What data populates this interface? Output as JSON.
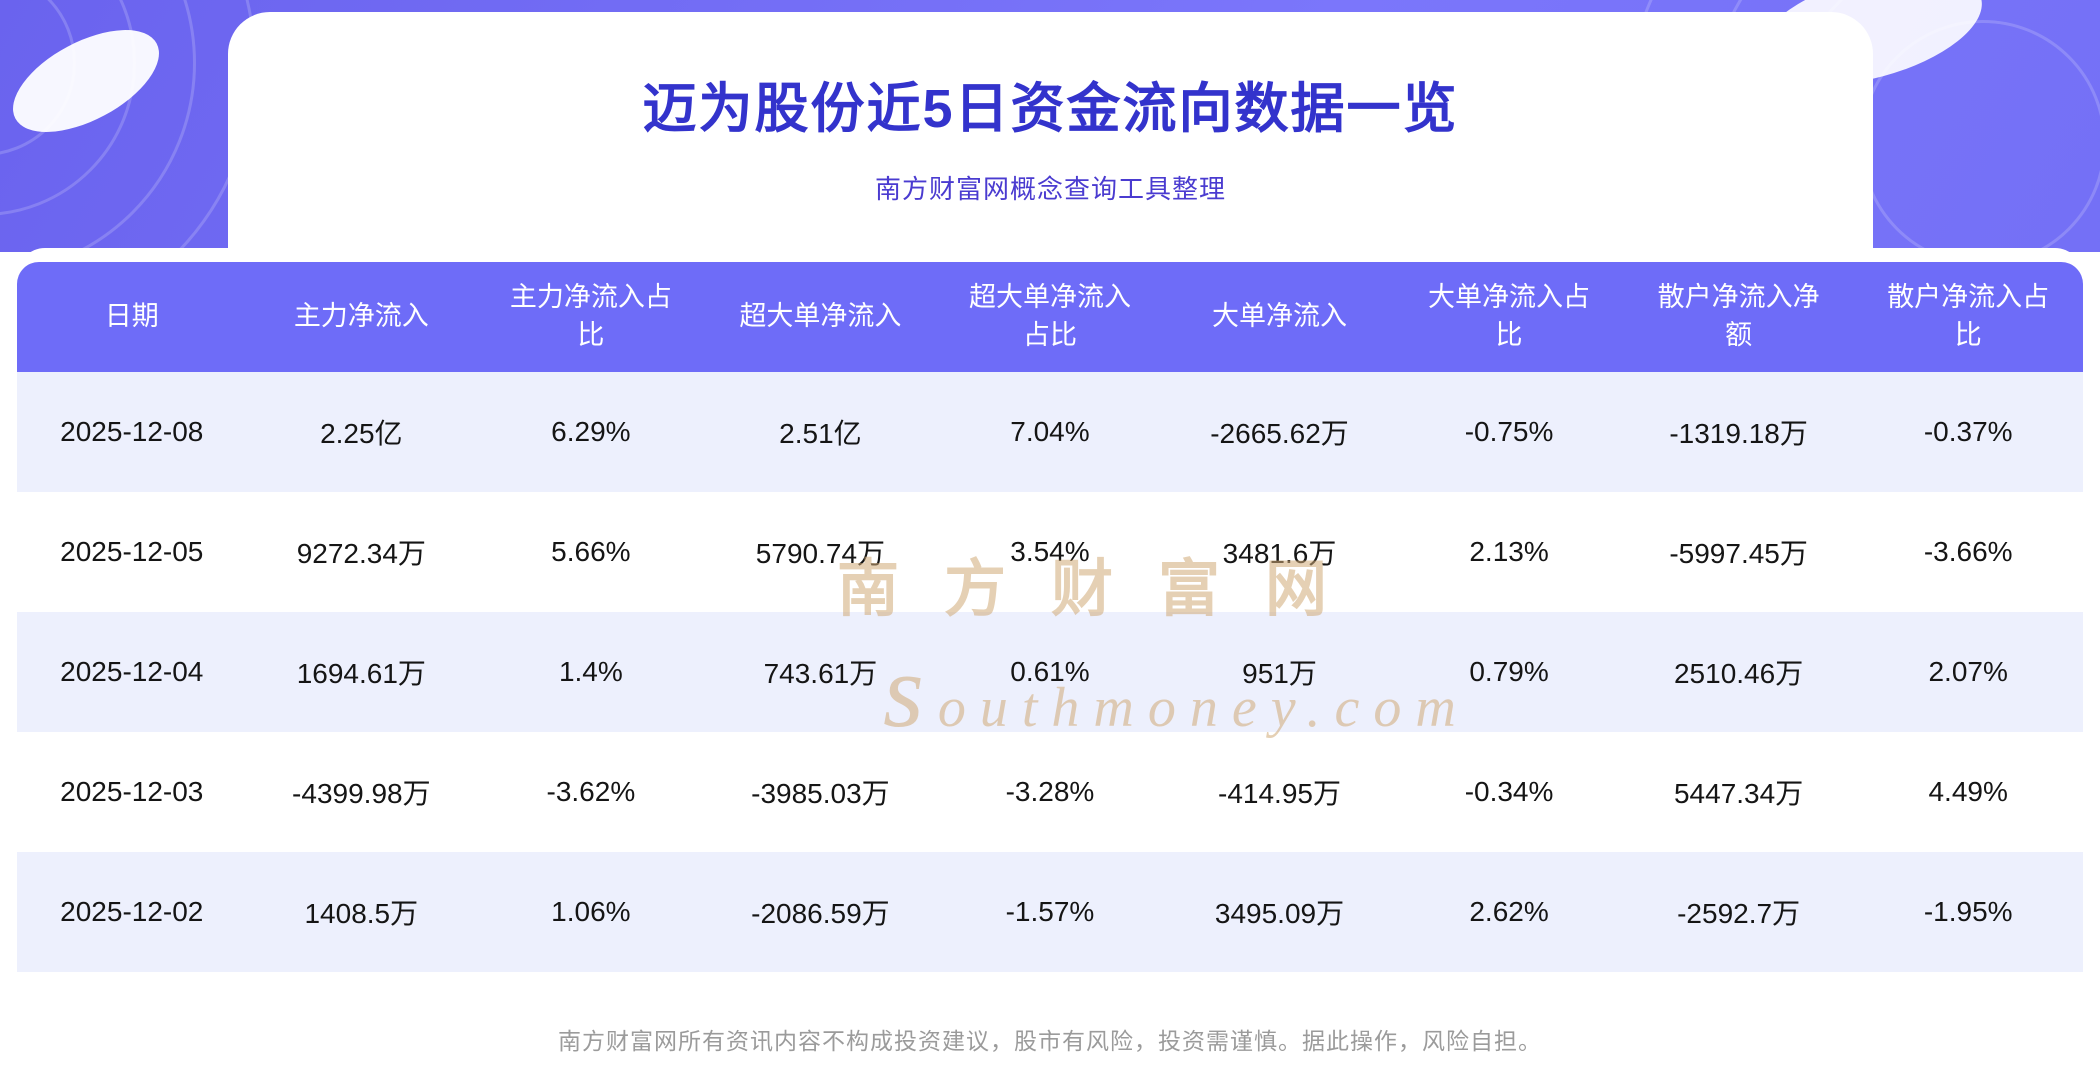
{
  "header": {
    "title": "迈为股份近5日资金流向数据一览",
    "subtitle": "南方财富网概念查询工具整理"
  },
  "watermark": {
    "cn": "南方财富网",
    "en": "southmoney.com"
  },
  "footer": {
    "text": "南方财富网所有资讯内容不构成投资建议，股市有风险，投资需谨慎。据此操作，风险自担。"
  },
  "colors": {
    "banner": "#6a63ee",
    "header_bg": "#6e6cf8",
    "row_alt": "#edf0fd",
    "title": "#3333cc",
    "subtitle": "#4a3bd0",
    "watermark": "#d0aa76"
  },
  "chart_data": {
    "type": "table",
    "title": "迈为股份近5日资金流向数据一览",
    "columns": [
      "日期",
      "主力净流入",
      "主力净流入占比",
      "超大单净流入",
      "超大单净流入占比",
      "大单净流入",
      "大单净流入占比",
      "散户净流入净额",
      "散户净流入占比"
    ],
    "rows": [
      [
        "2025-12-08",
        "2.25亿",
        "6.29%",
        "2.51亿",
        "7.04%",
        "-2665.62万",
        "-0.75%",
        "-1319.18万",
        "-0.37%"
      ],
      [
        "2025-12-05",
        "9272.34万",
        "5.66%",
        "5790.74万",
        "3.54%",
        "3481.6万",
        "2.13%",
        "-5997.45万",
        "-3.66%"
      ],
      [
        "2025-12-04",
        "1694.61万",
        "1.4%",
        "743.61万",
        "0.61%",
        "951万",
        "0.79%",
        "2510.46万",
        "2.07%"
      ],
      [
        "2025-12-03",
        "-4399.98万",
        "-3.62%",
        "-3985.03万",
        "-3.28%",
        "-414.95万",
        "-0.34%",
        "5447.34万",
        "4.49%"
      ],
      [
        "2025-12-02",
        "1408.5万",
        "1.06%",
        "-2086.59万",
        "-1.57%",
        "3495.09万",
        "2.62%",
        "-2592.7万",
        "-1.95%"
      ]
    ]
  }
}
